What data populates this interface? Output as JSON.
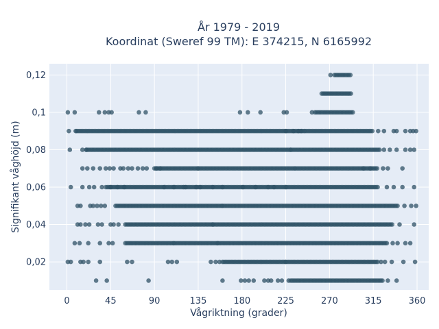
{
  "chart_data": {
    "type": "scatter",
    "title_line1": "År 1979 - 2019",
    "title_line2": "Koordinat (Sweref 99 TM): E 374215, N 6165992",
    "xlabel": "Vågriktning (grader)",
    "ylabel": "Signifikant våghöjd (m)",
    "xlim": [
      -18,
      372
    ],
    "ylim": [
      0.005,
      0.126
    ],
    "x_ticks": [
      0,
      45,
      90,
      135,
      180,
      225,
      270,
      315,
      360
    ],
    "x_tick_labels": [
      "0",
      "45",
      "90",
      "135",
      "180",
      "225",
      "270",
      "315",
      "360"
    ],
    "y_ticks": [
      0.02,
      0.04,
      0.06,
      0.08,
      0.1,
      0.12
    ],
    "y_tick_labels": [
      "0,02",
      "0,04",
      "0,06",
      "0,08",
      "0,1",
      "0,12"
    ],
    "grid": true,
    "marker_color": "#2f5266",
    "plot_bg": "#e5ecf6",
    "levels": [
      {
        "y": 0.01,
        "dense": [
          [
            230,
            325
          ]
        ],
        "points": [
          30,
          41,
          84,
          160,
          179,
          183,
          187,
          192,
          203,
          207,
          210,
          217,
          221,
          228,
          330,
          339
        ]
      },
      {
        "y": 0.02,
        "dense": [
          [
            225,
            320
          ],
          [
            160,
            225
          ]
        ],
        "points": [
          1,
          4,
          14,
          17,
          22,
          34,
          62,
          67,
          104,
          108,
          113,
          148,
          153,
          157,
          323,
          327,
          334,
          346,
          358
        ]
      },
      {
        "y": 0.03,
        "dense": [
          [
            155,
            330
          ],
          [
            110,
            155
          ],
          [
            60,
            110
          ]
        ],
        "points": [
          8,
          13,
          22,
          34,
          43,
          47,
          335,
          340,
          348,
          353
        ]
      },
      {
        "y": 0.04,
        "dense": [
          [
            150,
            335
          ],
          [
            60,
            150
          ]
        ],
        "points": [
          11,
          14,
          19,
          23,
          32,
          36,
          45,
          48,
          53,
          342,
          357
        ]
      },
      {
        "y": 0.05,
        "dense": [
          [
            160,
            340
          ],
          [
            50,
            160
          ]
        ],
        "points": [
          11,
          14,
          24,
          27,
          31,
          35,
          39,
          347,
          354,
          359
        ]
      },
      {
        "y": 0.06,
        "dense": [
          [
            225,
            320
          ],
          [
            120,
            225
          ],
          [
            40,
            120
          ]
        ],
        "points": [
          4,
          16,
          23,
          28,
          36,
          45,
          52,
          59,
          100,
          110,
          122,
          133,
          137,
          150,
          160,
          181,
          194,
          207,
          213,
          329,
          336,
          345,
          357
        ]
      },
      {
        "y": 0.07,
        "dense": [
          [
            235,
            320
          ],
          [
            135,
            235
          ],
          [
            90,
            135
          ]
        ],
        "points": [
          16,
          21,
          27,
          34,
          40,
          44,
          48,
          55,
          58,
          63,
          67,
          73,
          78,
          82,
          92,
          96,
          305,
          312,
          325,
          330,
          345
        ]
      },
      {
        "y": 0.08,
        "dense": [
          [
            230,
            322
          ],
          [
            20,
            230
          ]
        ],
        "points": [
          3,
          16,
          20,
          326,
          332,
          339,
          348,
          353,
          357
        ]
      },
      {
        "y": 0.09,
        "dense": [
          [
            245,
            315
          ],
          [
            10,
            245
          ]
        ],
        "points": [
          2,
          9,
          225,
          233,
          238,
          241,
          320,
          326,
          336,
          339,
          348,
          353,
          356,
          359
        ]
      },
      {
        "y": 0.1,
        "dense": [
          [
            255,
            295
          ]
        ],
        "points": [
          1,
          8,
          33,
          39,
          43,
          46,
          74,
          81,
          178,
          186,
          199,
          223,
          226,
          252
        ]
      },
      {
        "y": 0.11,
        "dense": [
          [
            262,
            292
          ]
        ],
        "points": []
      },
      {
        "y": 0.12,
        "dense": [
          [
            275,
            292
          ]
        ],
        "points": [
          271
        ]
      }
    ]
  }
}
